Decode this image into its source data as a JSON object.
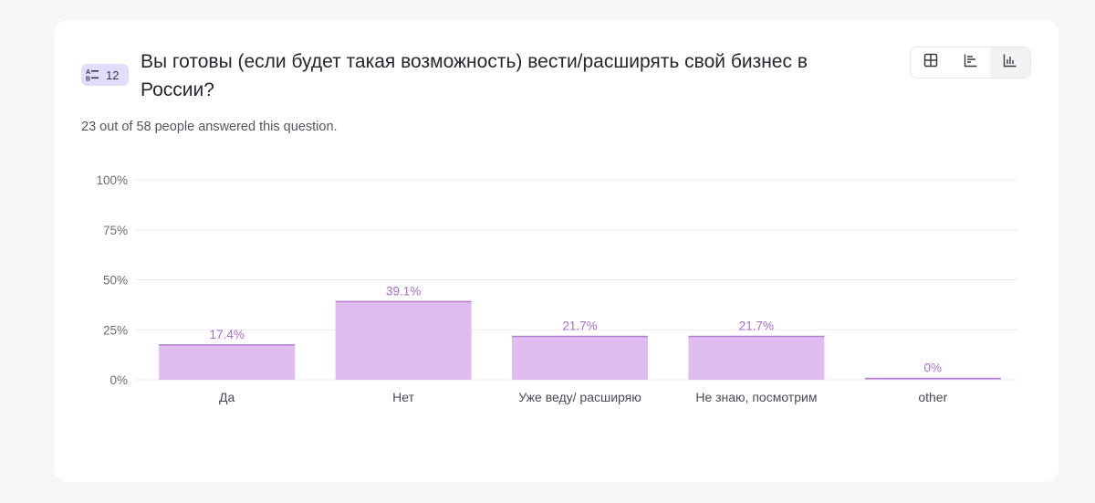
{
  "question": {
    "type_icon": "a-b-choice-icon",
    "number": "12",
    "title": "Вы готовы (если будет такая возможность) вести/расширять свой бизнес в России?",
    "answered_text": "23 out of 58 people answered this question."
  },
  "view_toggle": {
    "buttons": [
      {
        "icon": "grid-icon",
        "active": false
      },
      {
        "icon": "list-chart-icon",
        "active": false
      },
      {
        "icon": "bar-chart-icon",
        "active": true
      }
    ]
  },
  "colors": {
    "bar_fill": "#dfbdf0",
    "bar_top": "#b27fcf",
    "value_label": "#a66dc7",
    "grid": "#ebebee",
    "badge": "#e3dcfa"
  },
  "chart_data": {
    "type": "bar",
    "categories": [
      "Да",
      "Нет",
      "Уже веду/ расширяю",
      "Не знаю, посмотрим",
      "other"
    ],
    "values": [
      17.4,
      39.1,
      21.7,
      21.7,
      0
    ],
    "value_labels": [
      "17.4%",
      "39.1%",
      "21.7%",
      "21.7%",
      "0%"
    ],
    "ylim": [
      0,
      100
    ],
    "yticks": [
      0,
      25,
      50,
      75,
      100
    ],
    "ytick_labels": [
      "0%",
      "25%",
      "50%",
      "75%",
      "100%"
    ],
    "grid": true,
    "legend": "none"
  }
}
